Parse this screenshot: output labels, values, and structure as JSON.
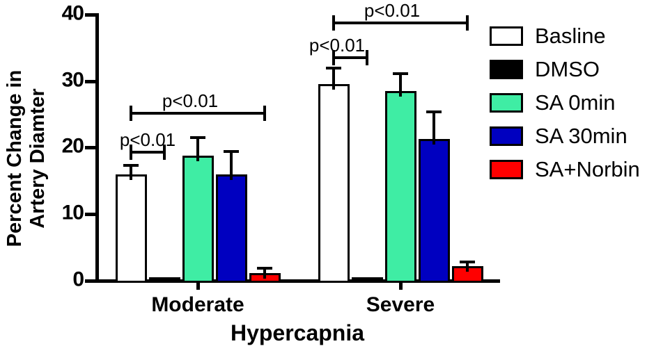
{
  "chart_data": {
    "type": "bar",
    "title": "",
    "ylabel_lines": [
      "Percent Change in",
      "Artery Diamter"
    ],
    "xlabel": "Hypercapnia",
    "categories": [
      "Moderate",
      "Severe"
    ],
    "yticks": [
      0,
      10,
      20,
      30,
      40
    ],
    "ylim": [
      0,
      40
    ],
    "grid": false,
    "legend_position": "right",
    "series": [
      {
        "name": "Basline",
        "color": "#FFFFFF",
        "values": [
          16.0,
          29.5
        ],
        "errors": [
          1.3,
          2.4
        ]
      },
      {
        "name": "DMSO",
        "color": "#000000",
        "values": [
          0.5,
          0.5
        ],
        "errors": [
          0,
          0
        ]
      },
      {
        "name": "SA 0min",
        "color": "#3FEDA4",
        "values": [
          18.8,
          28.5
        ],
        "errors": [
          2.7,
          2.6
        ]
      },
      {
        "name": "SA 30min",
        "color": "#0000C0",
        "values": [
          16.0,
          21.3
        ],
        "errors": [
          3.4,
          4.1
        ]
      },
      {
        "name": "SA+Norbin",
        "color": "#FF0000",
        "values": [
          1.1,
          2.2
        ],
        "errors": [
          0.8,
          0.6
        ]
      }
    ],
    "significance": [
      {
        "category": "Moderate",
        "from": "Basline",
        "to": "DMSO",
        "label": "p<0.01",
        "y": 19.3,
        "label_dx": 0
      },
      {
        "category": "Moderate",
        "from": "Basline",
        "to": "SA+Norbin",
        "label": "p<0.01",
        "y": 25.2,
        "label_dx": -11
      },
      {
        "category": "Severe",
        "from": "Basline",
        "to": "DMSO",
        "label": "p<0.01",
        "y": 33.5,
        "label_dx": -19
      },
      {
        "category": "Severe",
        "from": "Basline",
        "to": "SA+Norbin",
        "label": "p<0.01",
        "y": 38.7,
        "label_dx": -12
      }
    ],
    "axis_color": "#000000"
  }
}
